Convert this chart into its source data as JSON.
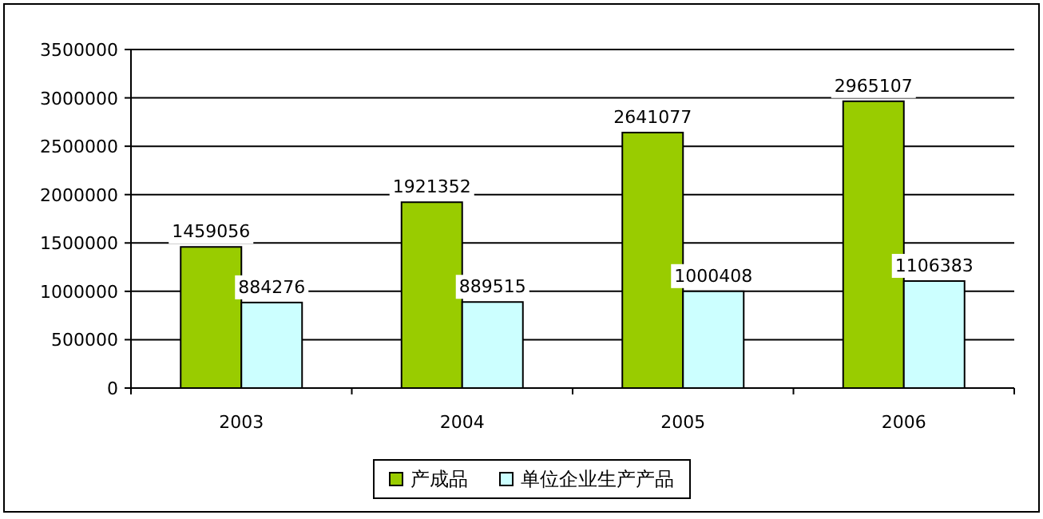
{
  "chart_data": {
    "type": "bar",
    "categories": [
      "2003",
      "2004",
      "2005",
      "2006"
    ],
    "series": [
      {
        "name": "产成品",
        "color": "#99cc00",
        "values": [
          1459056,
          1921352,
          2641077,
          2965107
        ]
      },
      {
        "name": "单位企业生产产品",
        "color": "#ccffff",
        "values": [
          884276,
          889515,
          1000408,
          1106383
        ]
      }
    ],
    "ylim": [
      0,
      3500000
    ],
    "yticks": [
      0,
      500000,
      1000000,
      1500000,
      2000000,
      2500000,
      3000000,
      3500000
    ],
    "grid": "y",
    "legend": "bottom",
    "data_labels": true
  }
}
